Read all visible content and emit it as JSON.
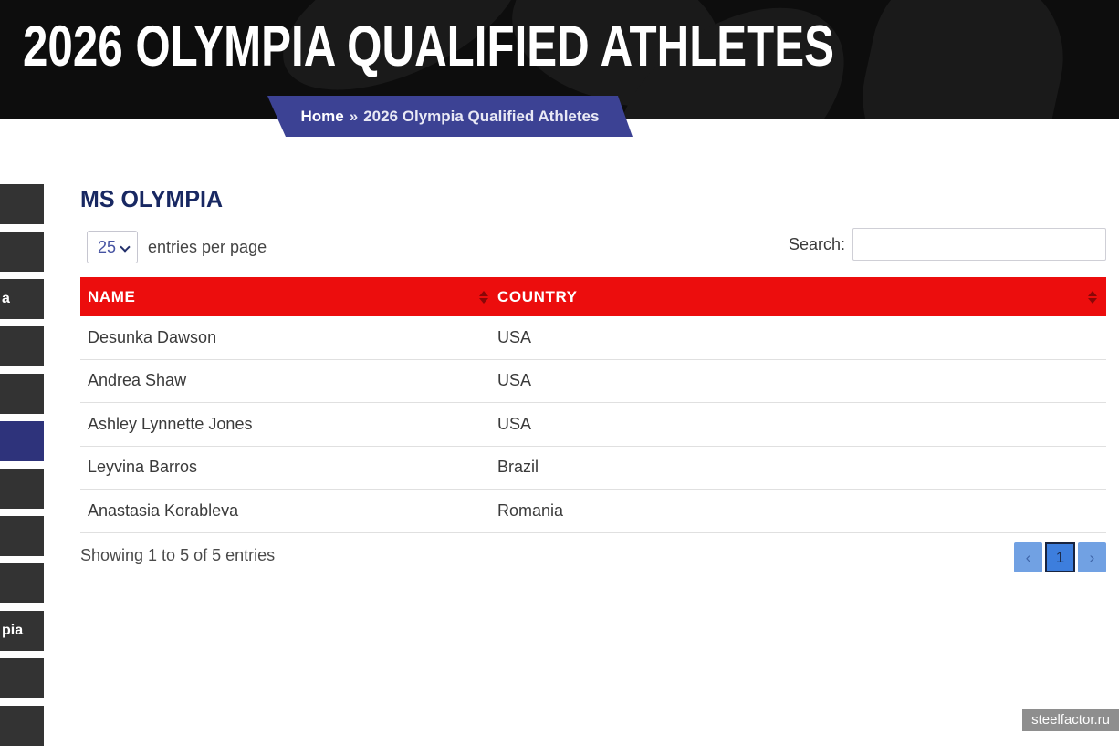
{
  "colors": {
    "header_bg": "#0d0d0d",
    "banner_blue": "#3c4294",
    "heading_navy": "#182862",
    "table_header_red": "#ec0d0d",
    "sidebar_item_bg": "#333333",
    "sidebar_active_bg": "#2e337b",
    "page_btn_bg": "#71a1e3",
    "page_current_bg": "#3d7edd",
    "page_current_border": "#182440",
    "row_border": "#e0e0e0"
  },
  "header": {
    "title": "2026 OLYMPIA QUALIFIED ATHLETES",
    "breadcrumb": {
      "home": "Home",
      "separator": "»",
      "current": "2026 Olympia Qualified Athletes"
    }
  },
  "sidebar": {
    "items": [
      {
        "label": "",
        "active": false
      },
      {
        "label": "",
        "active": false
      },
      {
        "label": "a",
        "active": false
      },
      {
        "label": "",
        "active": false
      },
      {
        "label": "",
        "active": false
      },
      {
        "label": "",
        "active": true
      },
      {
        "label": "",
        "active": false
      },
      {
        "label": "",
        "active": false
      },
      {
        "label": "",
        "active": false
      },
      {
        "label": "pia",
        "active": false
      },
      {
        "label": "",
        "active": false
      },
      {
        "label": "",
        "active": false
      }
    ]
  },
  "main": {
    "section_title": "MS OLYMPIA",
    "controls": {
      "per_page_value": "25",
      "per_page_label": "entries per page",
      "search_label": "Search:",
      "search_value": ""
    },
    "table": {
      "columns": [
        "NAME",
        "COUNTRY"
      ],
      "rows": [
        {
          "name": "Desunka Dawson",
          "country": "USA"
        },
        {
          "name": "Andrea Shaw",
          "country": "USA"
        },
        {
          "name": "Ashley Lynnette Jones",
          "country": "USA"
        },
        {
          "name": "Leyvina Barros",
          "country": "Brazil"
        },
        {
          "name": "Anastasia Korableva",
          "country": "Romania"
        }
      ]
    },
    "footer": {
      "summary": "Showing 1 to 5 of 5 entries",
      "pagination": {
        "prev": "‹",
        "current": "1",
        "next": "›"
      }
    }
  },
  "watermark": "steelfactor.ru"
}
